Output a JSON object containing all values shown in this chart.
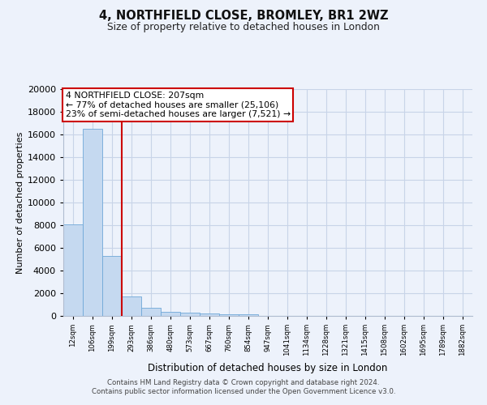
{
  "title_line1": "4, NORTHFIELD CLOSE, BROMLEY, BR1 2WZ",
  "title_line2": "Size of property relative to detached houses in London",
  "xlabel": "Distribution of detached houses by size in London",
  "ylabel": "Number of detached properties",
  "categories": [
    "12sqm",
    "106sqm",
    "199sqm",
    "293sqm",
    "386sqm",
    "480sqm",
    "573sqm",
    "667sqm",
    "760sqm",
    "854sqm",
    "947sqm",
    "1041sqm",
    "1134sqm",
    "1228sqm",
    "1321sqm",
    "1415sqm",
    "1508sqm",
    "1602sqm",
    "1695sqm",
    "1789sqm",
    "1882sqm"
  ],
  "values": [
    8100,
    16500,
    5300,
    1750,
    700,
    350,
    270,
    220,
    170,
    130,
    0,
    0,
    0,
    0,
    0,
    0,
    0,
    0,
    0,
    0,
    0
  ],
  "bar_color": "#c5d9f0",
  "bar_edge_color": "#6fa8d8",
  "red_line_x": 2.5,
  "annotation_text_line1": "4 NORTHFIELD CLOSE: 207sqm",
  "annotation_text_line2": "← 77% of detached houses are smaller (25,106)",
  "annotation_text_line3": "23% of semi-detached houses are larger (7,521) →",
  "red_line_color": "#cc0000",
  "annotation_box_color": "#ffffff",
  "annotation_box_edge": "#cc0000",
  "ylim_max": 20000,
  "yticks": [
    0,
    2000,
    4000,
    6000,
    8000,
    10000,
    12000,
    14000,
    16000,
    18000,
    20000
  ],
  "grid_color": "#c8d4e8",
  "footer_line1": "Contains HM Land Registry data © Crown copyright and database right 2024.",
  "footer_line2": "Contains public sector information licensed under the Open Government Licence v3.0.",
  "background_color": "#edf2fb"
}
